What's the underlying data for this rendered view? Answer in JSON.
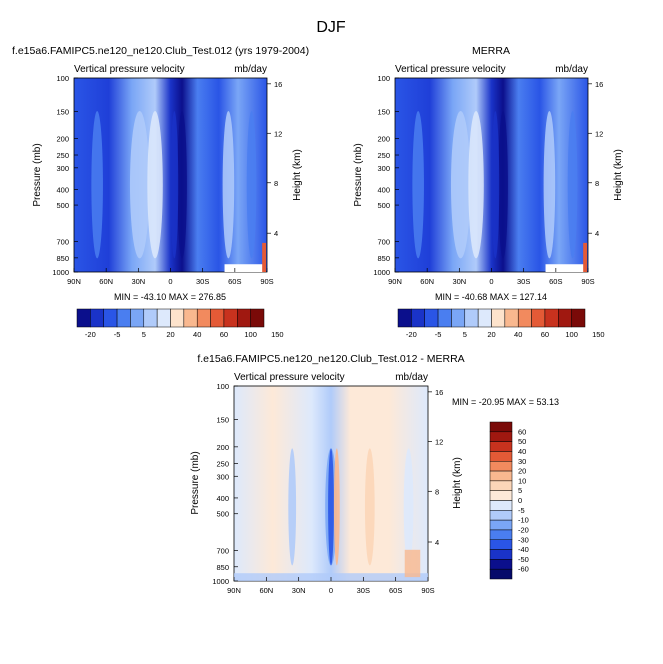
{
  "page_title": "DJF",
  "chart_data": [
    {
      "type": "heatmap",
      "title_left": "f.e15a6.FAMIPC5.ne120_ne120.Club_Test.012 (yrs 1979-2004)",
      "subtitle_left": "Vertical pressure velocity",
      "subtitle_right": "mb/day",
      "ylabel": "Pressure (mb)",
      "y2label": "Height (km)",
      "x_ticks": [
        "90N",
        "60N",
        "30N",
        "0",
        "30S",
        "60S",
        "90S"
      ],
      "y_ticks": [
        "100",
        "150",
        "200",
        "250",
        "300",
        "400",
        "500",
        "700",
        "850",
        "1000"
      ],
      "y2_ticks": [
        "16",
        "12",
        "8",
        "4"
      ],
      "stats": "MIN = -43.10   MAX = 276.85",
      "colorbar_labels": [
        "-20",
        "-5",
        "5",
        "20",
        "40",
        "60",
        "100",
        "150"
      ],
      "colors": [
        "#0b0f8c",
        "#1a33c8",
        "#2a55e6",
        "#4a7ef0",
        "#7aa6f6",
        "#b0cbfa",
        "#dde9fc",
        "#fde3cc",
        "#f9b88f",
        "#f28a5e",
        "#e45a36",
        "#c8321e",
        "#a01810",
        "#7a0a08"
      ]
    },
    {
      "type": "heatmap",
      "title_center": "MERRA",
      "subtitle_left": "Vertical pressure velocity",
      "subtitle_right": "mb/day",
      "ylabel": "Pressure (mb)",
      "y2label": "Height (km)",
      "x_ticks": [
        "90N",
        "60N",
        "30N",
        "0",
        "30S",
        "60S",
        "90S"
      ],
      "y_ticks": [
        "100",
        "150",
        "200",
        "250",
        "300",
        "400",
        "500",
        "700",
        "850",
        "1000"
      ],
      "y2_ticks": [
        "16",
        "12",
        "8",
        "4"
      ],
      "stats": "MIN = -40.68   MAX = 127.14",
      "colorbar_labels": [
        "-20",
        "-5",
        "5",
        "20",
        "40",
        "60",
        "100",
        "150"
      ]
    },
    {
      "type": "heatmap",
      "title_center": "f.e15a6.FAMIPC5.ne120_ne120.Club_Test.012 - MERRA",
      "subtitle_left": "Vertical pressure velocity",
      "subtitle_right": "mb/day",
      "ylabel": "Pressure (mb)",
      "y2label": "Height (km)",
      "x_ticks": [
        "90N",
        "60N",
        "30N",
        "0",
        "30S",
        "60S",
        "90S"
      ],
      "y_ticks": [
        "100",
        "150",
        "200",
        "250",
        "300",
        "400",
        "500",
        "700",
        "850",
        "1000"
      ],
      "y2_ticks": [
        "16",
        "12",
        "8",
        "4"
      ],
      "stats": "MIN = -20.95   MAX =  53.13",
      "colorbar_labels": [
        "60",
        "50",
        "40",
        "30",
        "20",
        "10",
        "5",
        "0",
        "-5",
        "-10",
        "-20",
        "-30",
        "-40",
        "-50",
        "-60"
      ],
      "colors": [
        "#7a0a08",
        "#a01810",
        "#c8321e",
        "#e45a36",
        "#f28a5e",
        "#f9b88f",
        "#fcd6b8",
        "#fde9d8",
        "#dde9fc",
        "#b0cbfa",
        "#7aa6f6",
        "#4a7ef0",
        "#2a55e6",
        "#1a33c8",
        "#0b0f8c",
        "#050a6a"
      ]
    }
  ]
}
